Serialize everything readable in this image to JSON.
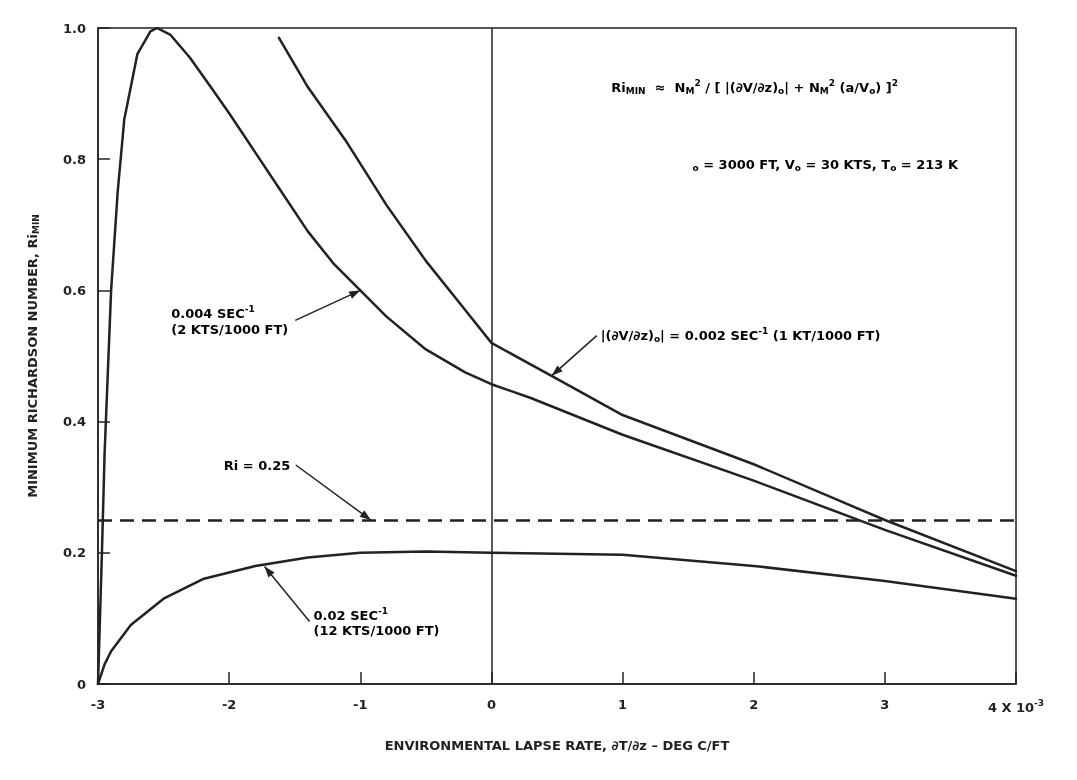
{
  "chart_data": {
    "type": "line",
    "xlabel": "ENVIRONMENTAL LAPSE RATE, ∂T/∂z – DEG C/FT",
    "ylabel": "MINIMUM RICHARDSON NUMBER, Ri$_{MIN}$",
    "xlim": [
      -3,
      4
    ],
    "xticks": [
      -3,
      -2,
      -1,
      0,
      1,
      2,
      3,
      {
        "value": 4,
        "label": "4 X 10$^{-3}$"
      }
    ],
    "ylim": [
      0,
      1
    ],
    "yticks": [
      0,
      0.2,
      0.4,
      0.6,
      0.8,
      {
        "value": 1,
        "label": "1.0"
      }
    ],
    "grid": false,
    "marker": "none",
    "line_style": "solid",
    "series": [
      {
        "color": "#222222",
        "x": [
          -3,
          -2.97,
          -2.95,
          -2.92,
          -2.9,
          -2.85,
          -2.8,
          -2.7,
          -2.6,
          -2.55,
          -2.45,
          -2.3,
          -2.14,
          -2.0,
          -1.8,
          -1.6,
          -1.4,
          -1.2,
          -1.0,
          -0.8,
          -0.5,
          -0.2,
          0,
          0.3,
          0.5,
          1,
          2,
          3,
          4
        ],
        "values": [
          0,
          0.2,
          0.35,
          0.5,
          0.6,
          0.75,
          0.86,
          0.96,
          0.995,
          1.0,
          0.99,
          0.955,
          0.91,
          0.87,
          0.81,
          0.75,
          0.69,
          0.64,
          0.6,
          0.56,
          0.51,
          0.475,
          0.457,
          0.436,
          0.42,
          0.38,
          0.31,
          0.235,
          0.165
        ]
      },
      {
        "color": "#222222",
        "x": [
          -1.62,
          -1.4,
          -1.1,
          -0.8,
          -0.5,
          -0.2,
          0,
          0.5,
          1,
          2,
          3,
          4
        ],
        "values": [
          0.985,
          0.91,
          0.825,
          0.73,
          0.645,
          0.57,
          0.52,
          0.465,
          0.41,
          0.335,
          0.25,
          0.172
        ]
      },
      {
        "color": "#222222",
        "x": [
          -3,
          -2.95,
          -2.9,
          -2.75,
          -2.5,
          -2.2,
          -1.8,
          -1.4,
          -1,
          -0.5,
          0,
          1,
          2,
          3,
          4
        ],
        "values": [
          0,
          0.03,
          0.05,
          0.09,
          0.13,
          0.16,
          0.18,
          0.193,
          0.2,
          0.202,
          0.2,
          0.197,
          0.18,
          0.157,
          0.13
        ]
      }
    ],
    "ref_lines": [
      {
        "axis": "y",
        "value": 0.25,
        "line_style": "dashed",
        "color": "#222222"
      },
      {
        "axis": "x",
        "value": 0,
        "line_style": "solid",
        "color": "#222222"
      }
    ],
    "annotations": [
      "Ri$_{MIN}$  ≈  N$_{M}$$^{2}$ / [ |(∂V/∂z)$_{o}$| + N$_{M}$$^{2}$ (a/V$_{o}$) ]$^{2}$",
      "$_{o}$ = 3000 FT, V$_{o}$ = 30 KTS, T$_{o}$ = 213 K",
      {
        "text": "|(∂V/∂z)$_{o}$| = 0.002 SEC$^{-1}$ (1 KT/1000 FT)",
        "x": 0.46,
        "y": 0.47
      },
      {
        "text": "0.004 SEC$^{-1}$\n(2 KTS/1000 FT)",
        "x": -1,
        "y": 0.6
      },
      {
        "text": "Ri = 0.25",
        "x": -0.92,
        "y": 0.25
      },
      {
        "text": "0.02 SEC$^{-1}$\n(12 KTS/1000 FT)",
        "x": -1.73,
        "y": 0.179
      }
    ]
  }
}
